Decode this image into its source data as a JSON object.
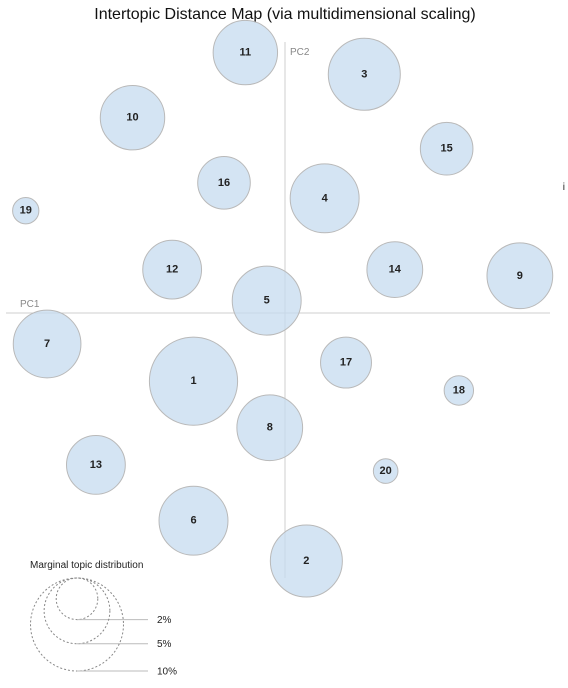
{
  "chart_data": {
    "type": "scatter",
    "title": "Intertopic Distance Map (via multidimensional scaling)",
    "xlabel": "PC1",
    "ylabel": "PC2",
    "edge_mark": "i",
    "topics": [
      {
        "id": "1",
        "x": -0.3,
        "y": -0.22,
        "size": 9.0
      },
      {
        "id": "2",
        "x": 0.07,
        "y": -0.8,
        "size": 6.0
      },
      {
        "id": "3",
        "x": 0.26,
        "y": 0.77,
        "size": 6.0
      },
      {
        "id": "4",
        "x": 0.13,
        "y": 0.37,
        "size": 5.5
      },
      {
        "id": "5",
        "x": -0.06,
        "y": 0.04,
        "size": 5.5
      },
      {
        "id": "6",
        "x": -0.3,
        "y": -0.67,
        "size": 5.5
      },
      {
        "id": "7",
        "x": -0.78,
        "y": -0.1,
        "size": 5.3
      },
      {
        "id": "8",
        "x": -0.05,
        "y": -0.37,
        "size": 5.0
      },
      {
        "id": "9",
        "x": 0.77,
        "y": 0.12,
        "size": 5.0
      },
      {
        "id": "10",
        "x": -0.5,
        "y": 0.63,
        "size": 4.8
      },
      {
        "id": "11",
        "x": -0.13,
        "y": 0.84,
        "size": 4.8
      },
      {
        "id": "12",
        "x": -0.37,
        "y": 0.14,
        "size": 4.0
      },
      {
        "id": "13",
        "x": -0.62,
        "y": -0.49,
        "size": 4.0
      },
      {
        "id": "14",
        "x": 0.36,
        "y": 0.14,
        "size": 3.6
      },
      {
        "id": "15",
        "x": 0.53,
        "y": 0.53,
        "size": 3.2
      },
      {
        "id": "16",
        "x": -0.2,
        "y": 0.42,
        "size": 3.2
      },
      {
        "id": "17",
        "x": 0.2,
        "y": -0.16,
        "size": 3.0
      },
      {
        "id": "18",
        "x": 0.57,
        "y": -0.25,
        "size": 1.0
      },
      {
        "id": "19",
        "x": -0.85,
        "y": 0.33,
        "size": 0.8
      },
      {
        "id": "20",
        "x": 0.33,
        "y": -0.51,
        "size": 0.7
      }
    ],
    "legend": {
      "title": "Marginal topic distribution",
      "items": [
        {
          "label": "2%",
          "value": 2
        },
        {
          "label": "5%",
          "value": 5
        },
        {
          "label": "10%",
          "value": 10
        }
      ]
    }
  }
}
